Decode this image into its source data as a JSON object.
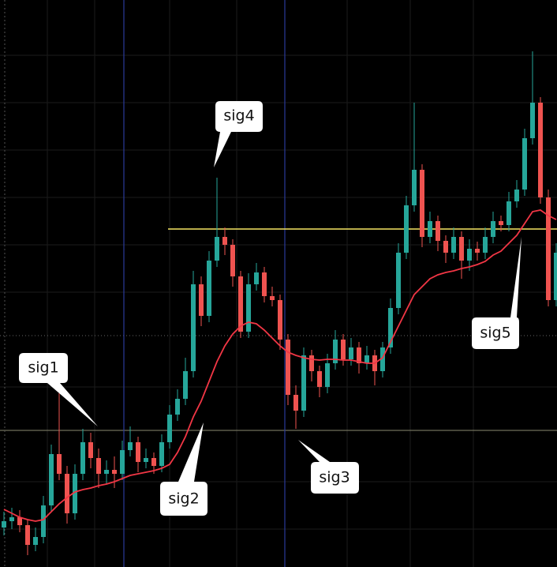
{
  "chart_data": {
    "type": "candlestick",
    "up_color": "#26a69a",
    "down_color": "#ef5350",
    "ylim": [
      0,
      718
    ],
    "ohlc": [
      [
        50,
        70,
        40,
        58
      ],
      [
        58,
        75,
        48,
        63
      ],
      [
        63,
        72,
        44,
        53
      ],
      [
        53,
        60,
        15,
        28
      ],
      [
        28,
        50,
        20,
        38
      ],
      [
        38,
        90,
        30,
        78
      ],
      [
        78,
        155,
        70,
        143
      ],
      [
        143,
        220,
        110,
        118
      ],
      [
        118,
        128,
        55,
        68
      ],
      [
        68,
        130,
        60,
        118
      ],
      [
        118,
        175,
        110,
        158
      ],
      [
        158,
        170,
        125,
        138
      ],
      [
        138,
        150,
        100,
        118
      ],
      [
        118,
        135,
        105,
        123
      ],
      [
        123,
        140,
        100,
        118
      ],
      [
        118,
        160,
        110,
        148
      ],
      [
        148,
        178,
        140,
        158
      ],
      [
        158,
        165,
        120,
        133
      ],
      [
        133,
        150,
        125,
        138
      ],
      [
        138,
        145,
        118,
        128
      ],
      [
        128,
        168,
        120,
        158
      ],
      [
        158,
        205,
        150,
        193
      ],
      [
        193,
        225,
        185,
        213
      ],
      [
        213,
        265,
        205,
        248
      ],
      [
        248,
        375,
        240,
        358
      ],
      [
        358,
        368,
        305,
        318
      ],
      [
        318,
        400,
        310,
        388
      ],
      [
        388,
        493,
        380,
        418
      ],
      [
        418,
        430,
        395,
        408
      ],
      [
        408,
        415,
        355,
        368
      ],
      [
        368,
        375,
        290,
        298
      ],
      [
        298,
        372,
        290,
        358
      ],
      [
        358,
        385,
        350,
        373
      ],
      [
        373,
        380,
        335,
        343
      ],
      [
        343,
        355,
        330,
        338
      ],
      [
        338,
        345,
        275,
        288
      ],
      [
        288,
        295,
        205,
        218
      ],
      [
        218,
        230,
        175,
        198
      ],
      [
        198,
        278,
        190,
        268
      ],
      [
        268,
        275,
        235,
        248
      ],
      [
        248,
        255,
        215,
        228
      ],
      [
        228,
        270,
        220,
        258
      ],
      [
        258,
        300,
        250,
        288
      ],
      [
        288,
        295,
        255,
        263
      ],
      [
        263,
        290,
        255,
        278
      ],
      [
        278,
        285,
        245,
        258
      ],
      [
        258,
        280,
        250,
        268
      ],
      [
        268,
        275,
        230,
        248
      ],
      [
        248,
        285,
        240,
        278
      ],
      [
        278,
        340,
        270,
        328
      ],
      [
        328,
        410,
        320,
        398
      ],
      [
        398,
        470,
        390,
        458
      ],
      [
        458,
        588,
        450,
        503
      ],
      [
        503,
        510,
        405,
        418
      ],
      [
        418,
        450,
        410,
        438
      ],
      [
        438,
        445,
        400,
        413
      ],
      [
        413,
        420,
        385,
        398
      ],
      [
        398,
        430,
        390,
        418
      ],
      [
        418,
        425,
        365,
        388
      ],
      [
        388,
        415,
        375,
        403
      ],
      [
        403,
        412,
        388,
        398
      ],
      [
        398,
        430,
        390,
        418
      ],
      [
        418,
        450,
        410,
        438
      ],
      [
        438,
        445,
        425,
        433
      ],
      [
        433,
        475,
        425,
        463
      ],
      [
        463,
        490,
        455,
        478
      ],
      [
        478,
        555,
        470,
        543
      ],
      [
        543,
        653,
        535,
        588
      ],
      [
        588,
        595,
        460,
        468
      ],
      [
        468,
        478,
        330,
        338
      ],
      [
        338,
        410,
        330,
        398
      ]
    ],
    "moving_average": {
      "color": "#f23645",
      "values": [
        73,
        68,
        63,
        60,
        58,
        60,
        70,
        80,
        88,
        95,
        98,
        100,
        103,
        105,
        108,
        112,
        116,
        118,
        120,
        122,
        125,
        130,
        145,
        165,
        190,
        210,
        235,
        260,
        280,
        295,
        305,
        310,
        308,
        300,
        290,
        280,
        272,
        268,
        265,
        263,
        262,
        263,
        263,
        262,
        262,
        260,
        258,
        258,
        265,
        285,
        305,
        325,
        345,
        355,
        365,
        370,
        373,
        375,
        378,
        380,
        383,
        387,
        395,
        400,
        410,
        420,
        435,
        450,
        452,
        445,
        440
      ]
    },
    "level_line": {
      "value": 428,
      "color": "#f5e663"
    },
    "annotations": [
      "sig1",
      "sig2",
      "sig3",
      "sig4",
      "sig5"
    ]
  }
}
